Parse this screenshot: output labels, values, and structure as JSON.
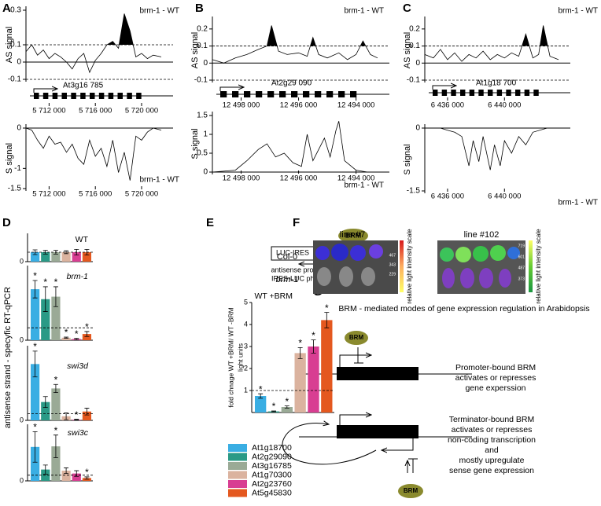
{
  "panel_labels": [
    "A",
    "B",
    "C",
    "D",
    "E",
    "F",
    "G"
  ],
  "panel_d_ylabel": "antisense strand - specyfic RT-qPCR",
  "panel_e_schematic": {
    "protein": "BRM",
    "box": "LUC-IRES",
    "caption": [
      "antisense promoter",
      "IRES-LUC phusion"
    ]
  },
  "panel_f": {
    "columns": [
      "line #7",
      "line #102"
    ],
    "rows": [
      "Col-0",
      "brm-1"
    ],
    "scale_label": "relative light intensity scale",
    "scale_left": [
      467,
      343,
      229
    ],
    "scale_right": [
      719,
      601,
      487,
      373
    ]
  },
  "panel_g": {
    "title": "BRM - mediated modes of gene expression regulation in Arabidopsis",
    "protein": "BRM",
    "promoter": [
      "Promoter-bound BRM",
      "activates or represses",
      "gene experssion"
    ],
    "terminator": [
      "Terminator-bound BRM",
      "activates or represses",
      "non-coding transcription",
      "and",
      "mostly upregulate",
      "sense gene expression"
    ]
  },
  "chart_data": [
    {
      "type": "line",
      "ylabel": "AS signal",
      "label": "brm-1 - WT",
      "gene": "At3g16 785",
      "fill_above": 0.1,
      "ref_lines": [
        0.1,
        -0.1
      ],
      "zero_line": true,
      "xlim": [
        5710000,
        5721700
      ],
      "xticks": [
        {
          "value": 5712000,
          "label": "5 712 000"
        },
        {
          "value": 5716000,
          "label": "5 716 000"
        },
        {
          "value": 5720000,
          "label": "5 720 000"
        }
      ],
      "ylim": [
        -0.1,
        0.3
      ],
      "yticks": [
        0.3,
        0.1,
        0,
        -0.1
      ],
      "x": [
        5710000,
        5710500,
        5711000,
        5711500,
        5712000,
        5712500,
        5713000,
        5713500,
        5714000,
        5714500,
        5715000,
        5715500,
        5716000,
        5716500,
        5717000,
        5717500,
        5718000,
        5718500,
        5719000,
        5719500,
        5720000,
        5720500,
        5721000,
        5721700
      ],
      "values": [
        0.06,
        0.1,
        0.04,
        0.07,
        0.02,
        0.05,
        0.03,
        0,
        -0.04,
        0.02,
        0.05,
        -0.06,
        0.01,
        0.05,
        0.1,
        0.12,
        0.08,
        0.28,
        0.18,
        0.03,
        0.05,
        0.02,
        0.04,
        0.03
      ]
    },
    {
      "type": "line",
      "ylabel": "S signal",
      "label": "brm-1 - WT",
      "zero_line": true,
      "xlim": [
        5710000,
        5721700
      ],
      "xticks": [
        {
          "value": 5712000,
          "label": "5 712 000"
        },
        {
          "value": 5716000,
          "label": "5 716 000"
        },
        {
          "value": 5720000,
          "label": "5 720 000"
        }
      ],
      "ylim": [
        -1.5,
        0
      ],
      "yticks": [
        0,
        -1,
        -1.5
      ],
      "x": [
        5710000,
        5710500,
        5711000,
        5711500,
        5712000,
        5712500,
        5713000,
        5713500,
        5714000,
        5714500,
        5715000,
        5715500,
        5716000,
        5716500,
        5717000,
        5717500,
        5718000,
        5718500,
        5719000,
        5719500,
        5720000,
        5720500,
        5721000,
        5721700
      ],
      "values": [
        0,
        -0.05,
        -0.3,
        -0.5,
        -0.2,
        -0.4,
        -0.35,
        -0.6,
        -0.4,
        -0.75,
        -0.9,
        -0.3,
        -0.7,
        -0.5,
        -0.95,
        -0.3,
        -1.1,
        -0.6,
        -1.3,
        -0.2,
        -0.3,
        -0.1,
        0,
        -0.05
      ]
    },
    {
      "type": "line",
      "ylabel": "AS signal",
      "label": "brm-1 - WT",
      "gene": "At2g29 090",
      "fill_above": 0.1,
      "ref_lines": [
        0.1,
        -0.1
      ],
      "zero_line": true,
      "xlim": [
        12499000,
        12493250
      ],
      "xticks": [
        {
          "value": 12498000,
          "label": "12 498 000"
        },
        {
          "value": 12496000,
          "label": "12 496 000"
        },
        {
          "value": 12494000,
          "label": "12 494 000"
        }
      ],
      "ylim": [
        -0.1,
        0.25
      ],
      "yticks": [
        0.2,
        0.1,
        0,
        -0.1
      ],
      "x": [
        12499000,
        12498600,
        12498200,
        12497800,
        12497400,
        12497100,
        12496940,
        12496700,
        12496400,
        12496000,
        12495700,
        12495500,
        12495300,
        12495000,
        12494600,
        12494300,
        12494000,
        12493760,
        12493500,
        12493250
      ],
      "values": [
        0.02,
        0,
        0.03,
        0.05,
        0.08,
        0.1,
        0.22,
        0.07,
        0.05,
        0.06,
        0.04,
        0.15,
        0.05,
        0.03,
        0.06,
        0.02,
        0.05,
        0.13,
        0.05,
        0.03
      ]
    },
    {
      "type": "line",
      "ylabel": "S signal",
      "label": "brm-1 - WT",
      "zero_line": true,
      "xlim": [
        12499000,
        12493250
      ],
      "xticks": [
        {
          "value": 12498000,
          "label": "12 498 000"
        },
        {
          "value": 12496000,
          "label": "12 496 000"
        },
        {
          "value": 12494000,
          "label": "12 494 000"
        }
      ],
      "ylim": [
        0,
        1.5
      ],
      "yticks": [
        1.5,
        1,
        0.5,
        0
      ],
      "x": [
        12499000,
        12498200,
        12497800,
        12497400,
        12497100,
        12496800,
        12496500,
        12496200,
        12495900,
        12495700,
        12495500,
        12495100,
        12494900,
        12494700,
        12494600,
        12494400,
        12494000,
        12493600,
        12493250
      ],
      "values": [
        0,
        0.05,
        0.3,
        0.6,
        0.75,
        0.4,
        0.5,
        0.25,
        0.15,
        1,
        0.3,
        0.9,
        0.4,
        1.1,
        1.35,
        0.3,
        0.05,
        0,
        0
      ]
    },
    {
      "type": "line",
      "ylabel": "AS signal",
      "label": "brm-1 - WT",
      "gene": "At1g18 700",
      "fill_above": 0.1,
      "ref_lines": [
        0.1,
        -0.1
      ],
      "zero_line": true,
      "xlim": [
        6434400,
        6443800
      ],
      "xticks": [
        {
          "value": 6436000,
          "label": "6 436 000"
        },
        {
          "value": 6440000,
          "label": "6 440 000"
        }
      ],
      "ylim": [
        -0.1,
        0.25
      ],
      "yticks": [
        0.2,
        0.1,
        0,
        -0.1
      ],
      "x": [
        6434400,
        6435000,
        6435500,
        6436000,
        6436500,
        6437000,
        6437500,
        6438000,
        6438500,
        6439000,
        6439500,
        6440000,
        6440500,
        6441000,
        6441500,
        6442000,
        6442400,
        6442730,
        6443200,
        6443800
      ],
      "values": [
        0.05,
        0.03,
        0.08,
        0.02,
        0.06,
        0.01,
        0.05,
        0.03,
        0.07,
        0.02,
        0.05,
        0.03,
        0.06,
        0.04,
        0.17,
        0.03,
        0.05,
        0.22,
        0.04,
        0.02
      ]
    },
    {
      "type": "line",
      "ylabel": "S signal",
      "label": "brm-1 - WT",
      "zero_line": true,
      "xlim": [
        6434400,
        6443800
      ],
      "xticks": [
        {
          "value": 6436000,
          "label": "6 436 000"
        },
        {
          "value": 6440000,
          "label": "6 440 000"
        }
      ],
      "ylim": [
        -1.5,
        0
      ],
      "yticks": [
        0,
        -1.5
      ],
      "x": [
        6434400,
        6435500,
        6436000,
        6436500,
        6437000,
        6437500,
        6437800,
        6438200,
        6438500,
        6439000,
        6439300,
        6439700,
        6440000,
        6440500,
        6441000,
        6441500,
        6442000,
        6443000,
        6443800
      ],
      "values": [
        0,
        0,
        -0.05,
        -0.1,
        -0.2,
        -0.9,
        -0.3,
        -0.8,
        -0.2,
        -1,
        -0.4,
        -0.9,
        -0.3,
        -0.6,
        -0.2,
        -0.4,
        -0.1,
        0,
        0
      ]
    },
    {
      "type": "bar",
      "title": "WT",
      "ylim": [
        0,
        3
      ],
      "yticks": [
        0
      ],
      "ref_lines": [
        1
      ],
      "values": [
        1,
        1,
        1,
        1,
        1,
        1
      ],
      "errors": [
        0.25,
        0.2,
        0.2,
        0.15,
        0.3,
        0.3
      ]
    },
    {
      "type": "bar",
      "title": "brm-1",
      "ylim": [
        0,
        6
      ],
      "yticks": [
        0
      ],
      "ref_lines": [
        1
      ],
      "values": [
        4.1,
        3.3,
        3.5,
        0.2,
        0.1,
        0.5
      ],
      "errors": [
        0.7,
        1,
        0.8,
        0.05,
        0.05,
        0.2
      ],
      "markers": [
        "*",
        "*",
        "*",
        "*",
        "*",
        "*"
      ]
    },
    {
      "type": "bar",
      "title": "swi3d",
      "ylim": [
        0,
        11
      ],
      "yticks": [
        0
      ],
      "ref_lines": [
        1
      ],
      "values": [
        8.3,
        2.7,
        4.7,
        0.6,
        0.1,
        1.3
      ],
      "errors": [
        1.9,
        0.8,
        0.6,
        0.5,
        0.05,
        0.5
      ],
      "markers": [
        "*",
        null,
        "*",
        null,
        "*",
        null
      ]
    },
    {
      "type": "bar",
      "title": "swi3c",
      "ylim": [
        0,
        10
      ],
      "yticks": [
        0
      ],
      "ref_lines": [
        1
      ],
      "values": [
        6,
        2,
        6.1,
        1.8,
        1.3,
        0.5
      ],
      "errors": [
        2.7,
        0.8,
        2,
        0.5,
        0.5,
        0.2
      ],
      "markers": [
        "*",
        null,
        "*",
        null,
        null,
        "*"
      ]
    },
    {
      "type": "bar",
      "title": "WT +BRM",
      "ylabel": [
        "fold chnage WT +BRM/ WT -BRM",
        "light units"
      ],
      "ylim": [
        0,
        5
      ],
      "yticks": [
        1,
        2,
        3,
        4,
        5
      ],
      "ref_lines": [
        1
      ],
      "categories": [
        "At1g18700",
        "At2g29090",
        "At3g16785",
        "At1g70300",
        "At2g23760",
        "At5g45830"
      ],
      "colors": [
        "#3aaee3",
        "#2a9a86",
        "#9aaa96",
        "#dbb39f",
        "#d83e92",
        "#e4581f"
      ],
      "values": [
        0.75,
        0.05,
        0.25,
        2.7,
        3,
        4.2
      ],
      "errors": [
        0.1,
        0.02,
        0.05,
        0.25,
        0.3,
        0.35
      ],
      "markers": [
        "*",
        "*",
        "*",
        "*",
        "*",
        "*"
      ]
    }
  ]
}
